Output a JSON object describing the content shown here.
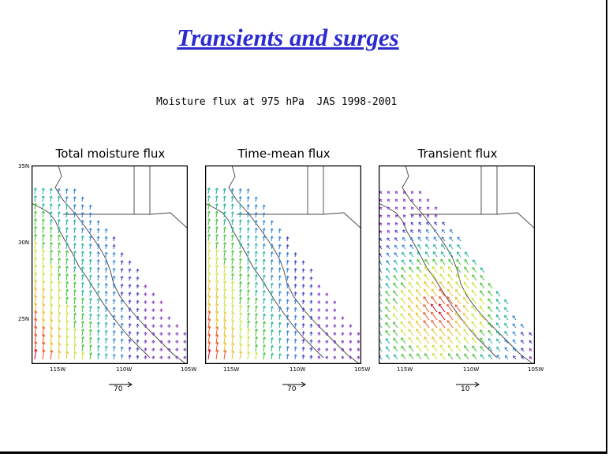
{
  "slide": {
    "title": "Transients and surges",
    "subtitle": "Moisture flux at 975 hPa  JAS 1998-2001"
  },
  "axes": {
    "lat_labels": [
      "35N",
      "30N",
      "25N"
    ],
    "lon_labels": [
      "115W",
      "110W",
      "105W"
    ]
  },
  "panels": [
    {
      "title": "Total moisture flux",
      "reference_vector": "70"
    },
    {
      "title": "Time-mean flux",
      "reference_vector": "70"
    },
    {
      "title": "Transient flux",
      "reference_vector": "10"
    }
  ],
  "colors": {
    "title": "#2b2bd0",
    "vector_scale": [
      "#d00020",
      "#f05020",
      "#e8c020",
      "#c8e030",
      "#40c030",
      "#20b0a0",
      "#3080d0",
      "#4040c0",
      "#8030c0"
    ]
  }
}
